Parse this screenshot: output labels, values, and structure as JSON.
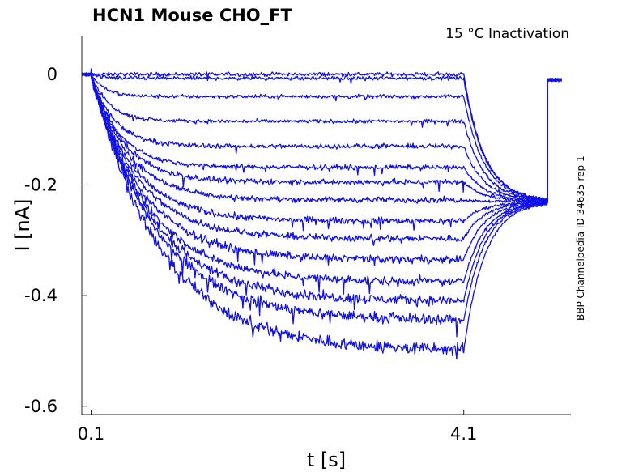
{
  "chart_data": {
    "type": "line",
    "title": "HCN1  Mouse  CHO_FT",
    "subtitle": "15 °C  Inactivation",
    "side_label": "BBP Channelpedia ID 34635 rep 1",
    "xlabel": "t [s]",
    "ylabel": "I [nA]",
    "xlim": [
      0.0,
      5.25
    ],
    "ylim": [
      -0.615,
      0.07
    ],
    "x_ticks": [
      {
        "value": 0.1,
        "label": "0.1"
      },
      {
        "value": 4.1,
        "label": "4.1"
      }
    ],
    "y_ticks": [
      {
        "value": 0,
        "label": "0"
      },
      {
        "value": -0.2,
        "label": "-0.2"
      },
      {
        "value": -0.4,
        "label": "-0.4"
      },
      {
        "value": -0.6,
        "label": "-0.6"
      }
    ],
    "grid": false,
    "color": "#1010e8",
    "protocol": {
      "pulse_start_s": 0.1,
      "pulse_end_s": 4.1,
      "test_end_s": 5.0,
      "trace_end_s": 5.15
    },
    "series": [
      {
        "steady": 0.0,
        "tail_amp": 0.235,
        "tau": 0.1,
        "noise": 0.004
      },
      {
        "steady": -0.007,
        "tail_amp": 0.235,
        "tau": 0.12,
        "noise": 0.004
      },
      {
        "steady": -0.04,
        "tail_amp": 0.2,
        "tau": 0.15,
        "noise": 0.004
      },
      {
        "steady": -0.085,
        "tail_amp": 0.155,
        "tau": 0.2,
        "noise": 0.004
      },
      {
        "steady": -0.13,
        "tail_amp": 0.11,
        "tau": 0.25,
        "noise": 0.005
      },
      {
        "steady": -0.168,
        "tail_amp": 0.07,
        "tau": 0.3,
        "noise": 0.005
      },
      {
        "steady": -0.195,
        "tail_amp": 0.04,
        "tau": 0.35,
        "noise": 0.006
      },
      {
        "steady": -0.227,
        "tail_amp": 0.01,
        "tau": 0.4,
        "noise": 0.006
      },
      {
        "steady": -0.265,
        "tail_amp": -0.02,
        "tau": 0.45,
        "noise": 0.007
      },
      {
        "steady": -0.297,
        "tail_amp": -0.045,
        "tau": 0.5,
        "noise": 0.007
      },
      {
        "steady": -0.335,
        "tail_amp": -0.07,
        "tau": 0.55,
        "noise": 0.008
      },
      {
        "steady": -0.375,
        "tail_amp": -0.085,
        "tau": 0.6,
        "noise": 0.009
      },
      {
        "steady": -0.41,
        "tail_amp": -0.1,
        "tau": 0.65,
        "noise": 0.01
      },
      {
        "steady": -0.445,
        "tail_amp": -0.115,
        "tau": 0.7,
        "noise": 0.011
      },
      {
        "steady": -0.5,
        "tail_amp": -0.13,
        "tau": 0.75,
        "noise": 0.013
      }
    ]
  }
}
